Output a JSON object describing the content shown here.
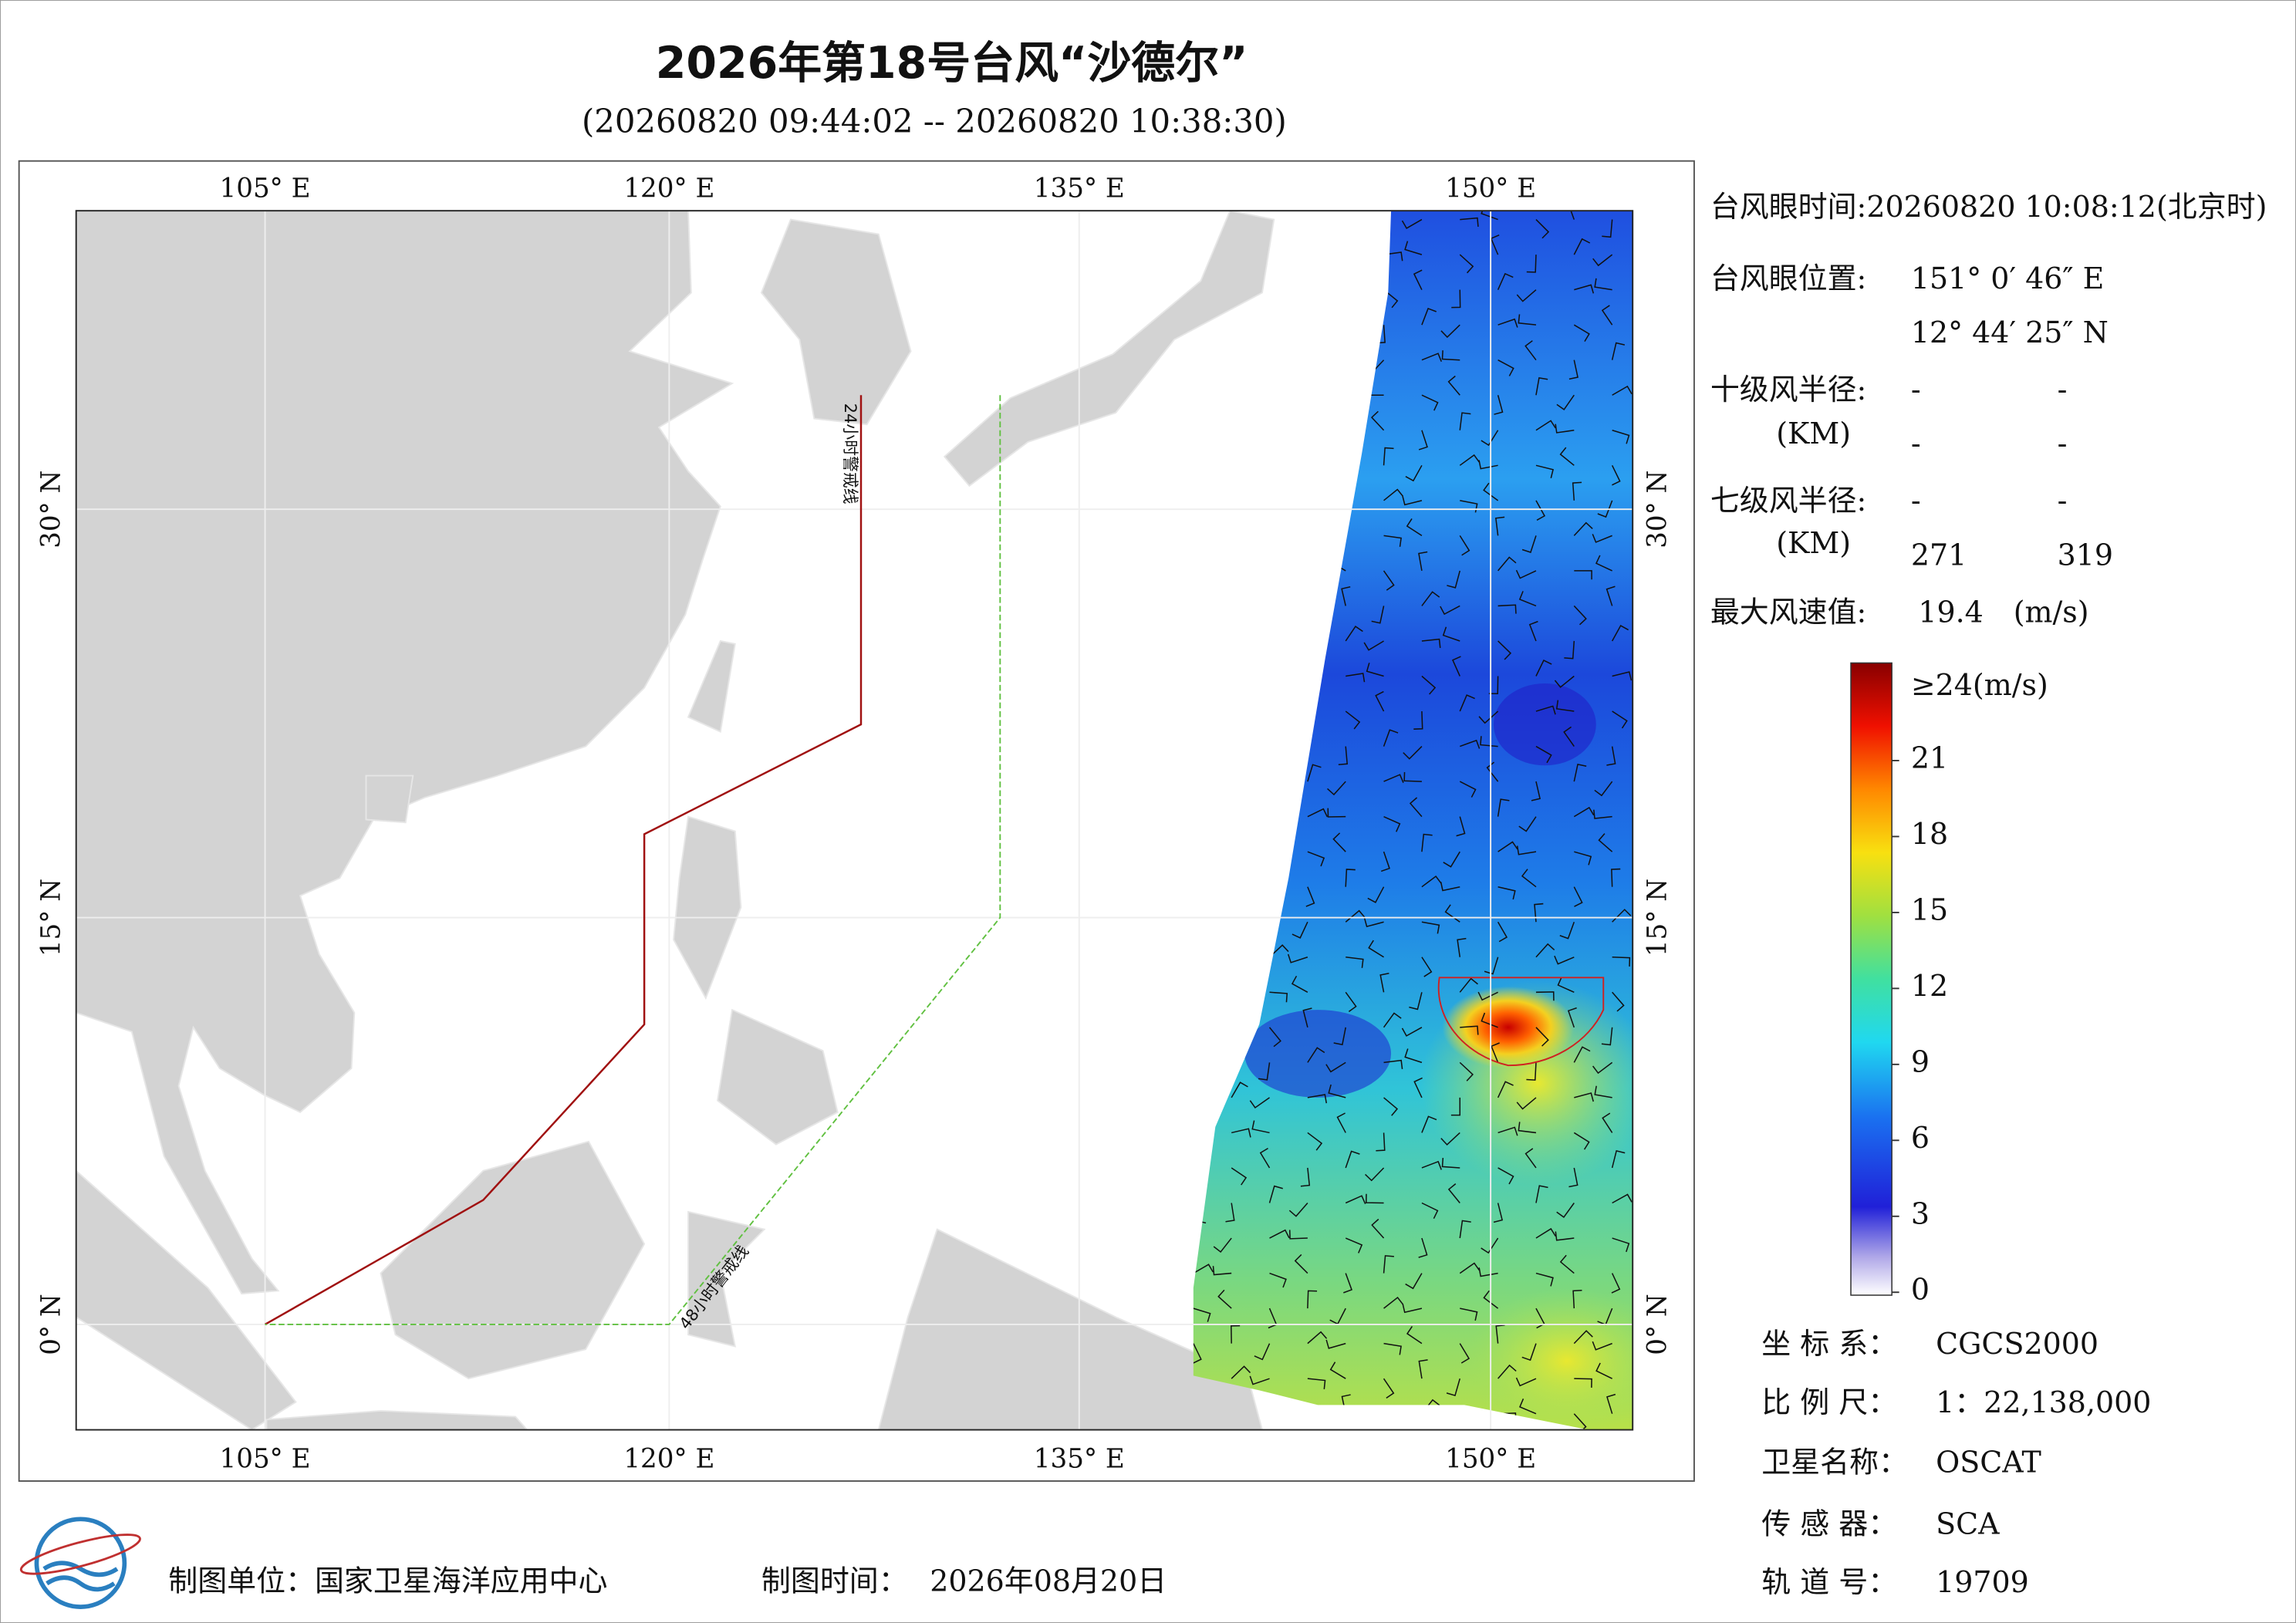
{
  "header": {
    "title": "2026年第18号台风“沙德尔”",
    "subtitle": "(20260820 09:44:02 -- 20260820 10:38:30)"
  },
  "map": {
    "lon_labels": [
      "105° E",
      "120° E",
      "135° E",
      "150° E"
    ],
    "lat_labels": [
      "30° N",
      "15° N",
      "0° N"
    ],
    "warning_lines": [
      "24小时警戒线",
      "48小时警戒线"
    ]
  },
  "info": {
    "eye_time": "台风眼时间:20260820 10:08:12(北京时)",
    "eye_position_label": "台风眼位置:",
    "eye_lon": "151° 0′ 46″ E",
    "eye_lat": "12° 44′ 25″ N",
    "r10_label": "十级风半径:",
    "r10_unit": "(KM)",
    "r10_values": [
      "-",
      "-",
      "-",
      "-"
    ],
    "r7_label": "七级风半径:",
    "r7_unit": "(KM)",
    "r7_values": [
      "-",
      "-",
      271,
      319
    ],
    "max_wind_label": "最大风速值:",
    "max_wind": 19.4,
    "max_wind_unit": "(m/s)"
  },
  "colorbar": {
    "max_label": "≥24(m/s)",
    "ticks": [
      21,
      18,
      15,
      12,
      9,
      6,
      3,
      0
    ]
  },
  "meta": {
    "rows": [
      [
        "坐 标 系：",
        "CGCS2000"
      ],
      [
        "比 例 尺：",
        "1：22,138,000"
      ],
      [
        "卫星名称：",
        "OSCAT"
      ],
      [
        "传 感 器：",
        "SCA"
      ],
      [
        "轨 道 号：",
        "19709"
      ]
    ]
  },
  "footer": {
    "unit": "制图单位：国家卫星海洋应用中心",
    "time_label": "制图时间：",
    "time": "2026年08月20日"
  }
}
